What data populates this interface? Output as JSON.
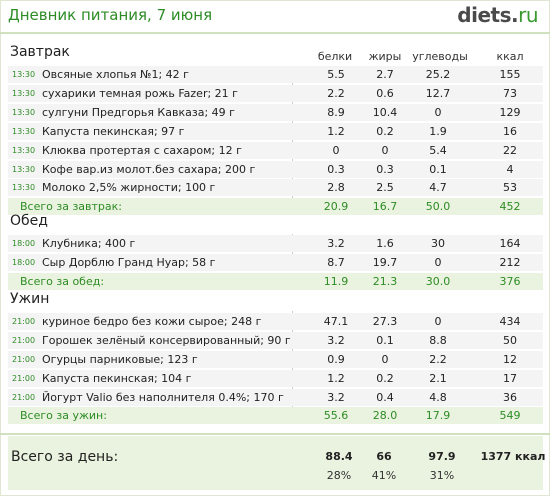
{
  "title": "Дневник питания, 7 июня",
  "logo": {
    "main": "diets",
    "dot": ".",
    "tld": "ru"
  },
  "columns": [
    "белки",
    "жиры",
    "углеводы",
    "ккал"
  ],
  "meals": [
    {
      "name": "Завтрак",
      "items": [
        {
          "time": "13:30",
          "food": "Овсяные хлопья №1; 42 г",
          "p": "5.5",
          "f": "2.7",
          "c": "25.2",
          "k": "155"
        },
        {
          "time": "13:30",
          "food": "сухарики темная рожь Fazer; 21 г",
          "p": "2.2",
          "f": "0.6",
          "c": "12.7",
          "k": "73"
        },
        {
          "time": "13:30",
          "food": "сулгуни Предгорья Кавказа; 49 г",
          "p": "8.9",
          "f": "10.4",
          "c": "0",
          "k": "129"
        },
        {
          "time": "13:30",
          "food": "Капуста пекинская; 97 г",
          "p": "1.2",
          "f": "0.2",
          "c": "1.9",
          "k": "16"
        },
        {
          "time": "13:30",
          "food": "Клюква протертая с сахаром; 12 г",
          "p": "0",
          "f": "0",
          "c": "5.4",
          "k": "22"
        },
        {
          "time": "13:30",
          "food": "Кофе вар.из молот.без сахара; 200 г",
          "p": "0.3",
          "f": "0.3",
          "c": "0.1",
          "k": "4"
        },
        {
          "time": "13:30",
          "food": "Молоко 2,5% жирности; 100 г",
          "p": "2.8",
          "f": "2.5",
          "c": "4.7",
          "k": "53"
        }
      ],
      "total": {
        "label": "Всего за завтрак:",
        "p": "20.9",
        "f": "16.7",
        "c": "50.0",
        "k": "452"
      }
    },
    {
      "name": "Обед",
      "items": [
        {
          "time": "18:00",
          "food": "Клубника; 400 г",
          "p": "3.2",
          "f": "1.6",
          "c": "30",
          "k": "164"
        },
        {
          "time": "18:00",
          "food": "Сыр Дорблю Гранд Нуар; 58 г",
          "p": "8.7",
          "f": "19.7",
          "c": "0",
          "k": "212"
        }
      ],
      "total": {
        "label": "Всего за обед:",
        "p": "11.9",
        "f": "21.3",
        "c": "30.0",
        "k": "376"
      }
    },
    {
      "name": "Ужин",
      "items": [
        {
          "time": "21:00",
          "food": "куриное бедро без кожи сырое; 248 г",
          "p": "47.1",
          "f": "27.3",
          "c": "0",
          "k": "434"
        },
        {
          "time": "21:00",
          "food": "Горошек зелёный консервированный; 90 г",
          "p": "3.2",
          "f": "0.1",
          "c": "8.8",
          "k": "50"
        },
        {
          "time": "21:00",
          "food": "Огурцы парниковые; 123 г",
          "p": "0.9",
          "f": "0",
          "c": "2.2",
          "k": "12"
        },
        {
          "time": "21:00",
          "food": "Капуста пекинская; 104 г",
          "p": "1.2",
          "f": "0.2",
          "c": "2.1",
          "k": "17"
        },
        {
          "time": "21:00",
          "food": "Йогурт Valio без наполнителя 0.4%; 170 г",
          "p": "3.2",
          "f": "0.4",
          "c": "4.8",
          "k": "36"
        }
      ],
      "total": {
        "label": "Всего за ужин:",
        "p": "55.6",
        "f": "28.0",
        "c": "17.9",
        "k": "549"
      }
    }
  ],
  "day": {
    "label": "Всего за день:",
    "p": "88.4",
    "f": "66",
    "c": "97.9",
    "k": "1377 ккал",
    "pp": "28%",
    "fp": "41%",
    "cp": "31%"
  }
}
